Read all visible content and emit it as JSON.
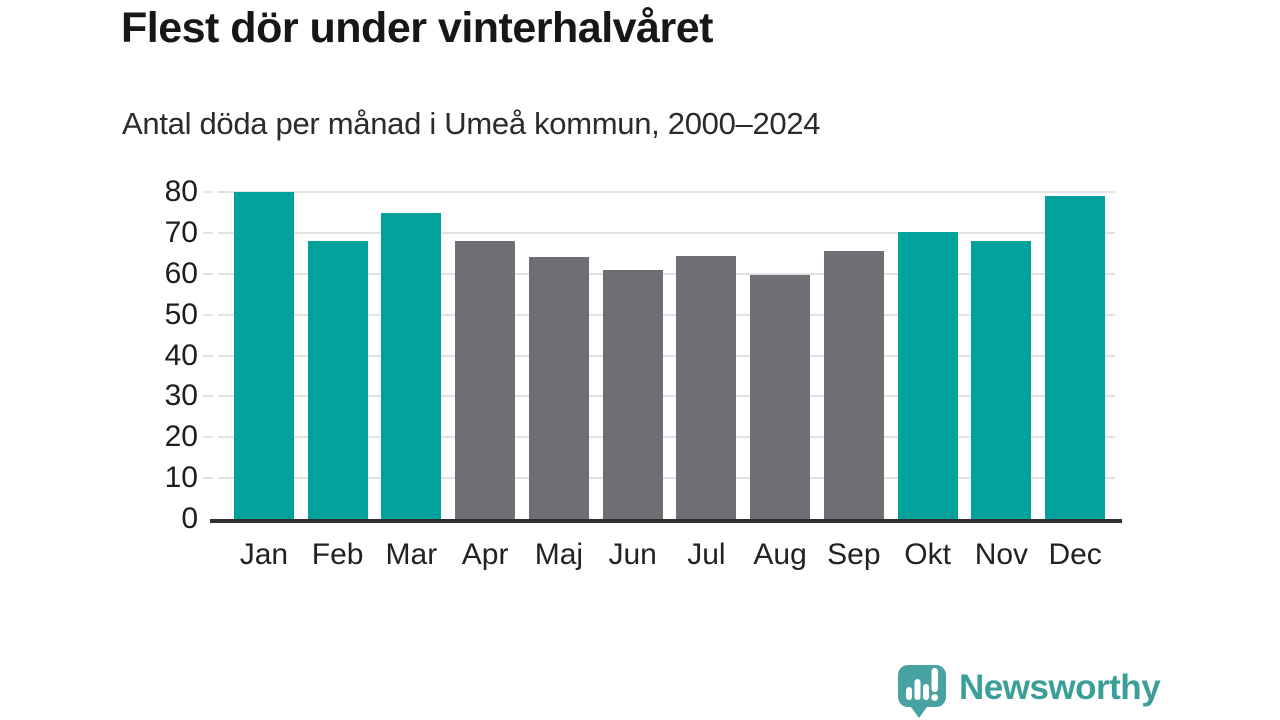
{
  "header": {
    "title": "Flest dör under vinterhalvåret",
    "subtitle": "Antal döda per månad i Umeå kommun, 2000–2024"
  },
  "chart_data": {
    "type": "bar",
    "title": "Flest dör under vinterhalvåret",
    "subtitle": "Antal döda per månad i Umeå kommun, 2000–2024",
    "categories": [
      "Jan",
      "Feb",
      "Mar",
      "Apr",
      "Maj",
      "Jun",
      "Jul",
      "Aug",
      "Sep",
      "Okt",
      "Nov",
      "Dec"
    ],
    "values": [
      80,
      68,
      74.8,
      68.1,
      64,
      61,
      64.4,
      59.7,
      65.6,
      70.1,
      68,
      79
    ],
    "bar_seasons": [
      "winter",
      "winter",
      "winter",
      "summer",
      "summer",
      "summer",
      "summer",
      "summer",
      "summer",
      "winter",
      "winter",
      "winter"
    ],
    "palette": {
      "winter": "#00a29b",
      "summer": "#6e6e74"
    },
    "xlabel": "",
    "ylabel": "",
    "ylim": [
      0,
      80
    ],
    "yticks": [
      0,
      10,
      20,
      30,
      40,
      50,
      60,
      70,
      80
    ],
    "grid": true,
    "legend": false,
    "gridline_color": "#e2e2e2",
    "axis_color": "#2f2f2f"
  },
  "branding": {
    "logo_text": "Newsworthy",
    "logo_color": "#3a9e99",
    "logo_bubble_color": "#48a2a1",
    "logo_icon": "speech-bubble-with-bar-chart-and-exclamation"
  }
}
